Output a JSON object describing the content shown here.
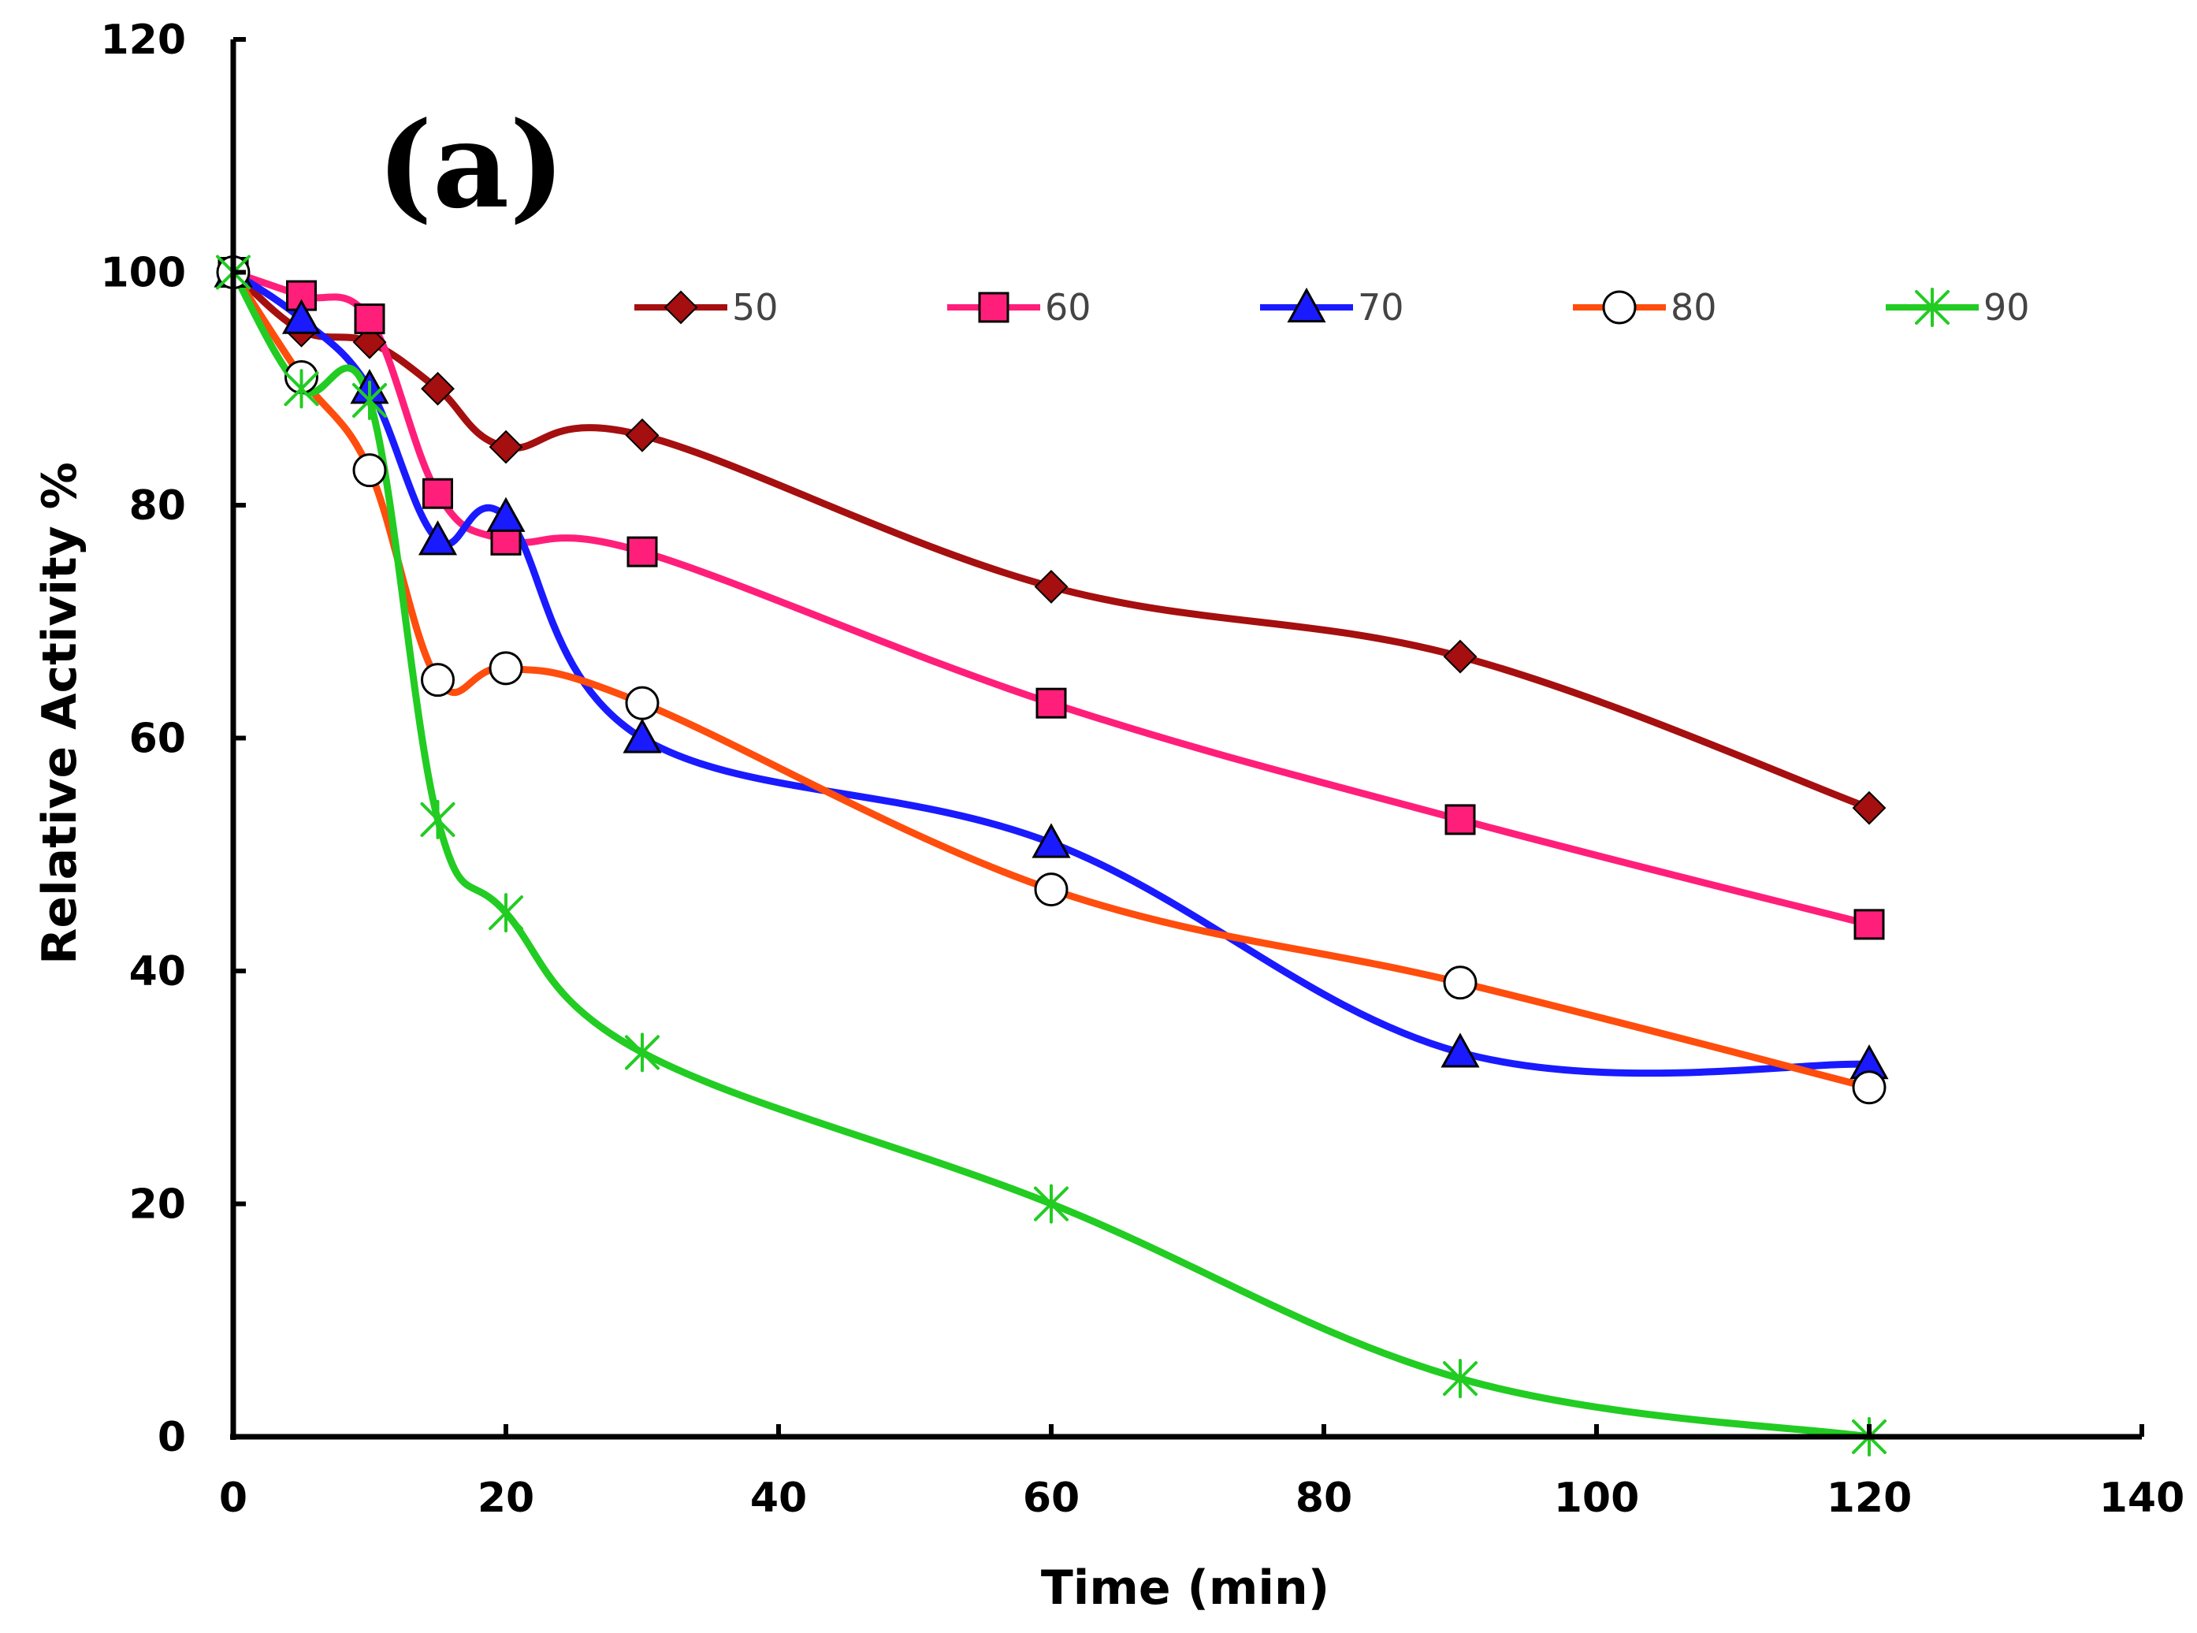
{
  "chart_data": {
    "type": "line",
    "panel_label": "(a)",
    "xlabel": "Time (min)",
    "ylabel": "Relative Activity %",
    "xlim": [
      0,
      140
    ],
    "ylim": [
      0,
      120
    ],
    "x_ticks": [
      0,
      20,
      40,
      60,
      80,
      100,
      120,
      140
    ],
    "y_ticks": [
      0,
      20,
      40,
      60,
      80,
      100,
      120
    ],
    "x": [
      0,
      5,
      10,
      15,
      20,
      30,
      60,
      90,
      120
    ],
    "legend_position": "top",
    "series": [
      {
        "name": "50",
        "color": "#a50f0f",
        "marker": "diamond",
        "values": [
          100,
          95,
          94,
          90,
          85,
          86,
          73,
          67,
          54
        ]
      },
      {
        "name": "60",
        "color": "#ff1f7a",
        "marker": "square",
        "values": [
          100,
          98,
          96,
          81,
          77,
          76,
          63,
          53,
          44
        ]
      },
      {
        "name": "70",
        "color": "#1a1aff",
        "marker": "triangle",
        "values": [
          100,
          96,
          90,
          77,
          79,
          60,
          51,
          33,
          32
        ]
      },
      {
        "name": "80",
        "color": "#ff4d0d",
        "marker": "circle",
        "values": [
          100,
          91,
          83,
          65,
          66,
          63,
          47,
          39,
          30
        ]
      },
      {
        "name": "90",
        "color": "#22cc22",
        "marker": "star",
        "values": [
          100,
          90,
          89,
          53,
          45,
          33,
          20,
          5,
          0
        ]
      }
    ]
  }
}
